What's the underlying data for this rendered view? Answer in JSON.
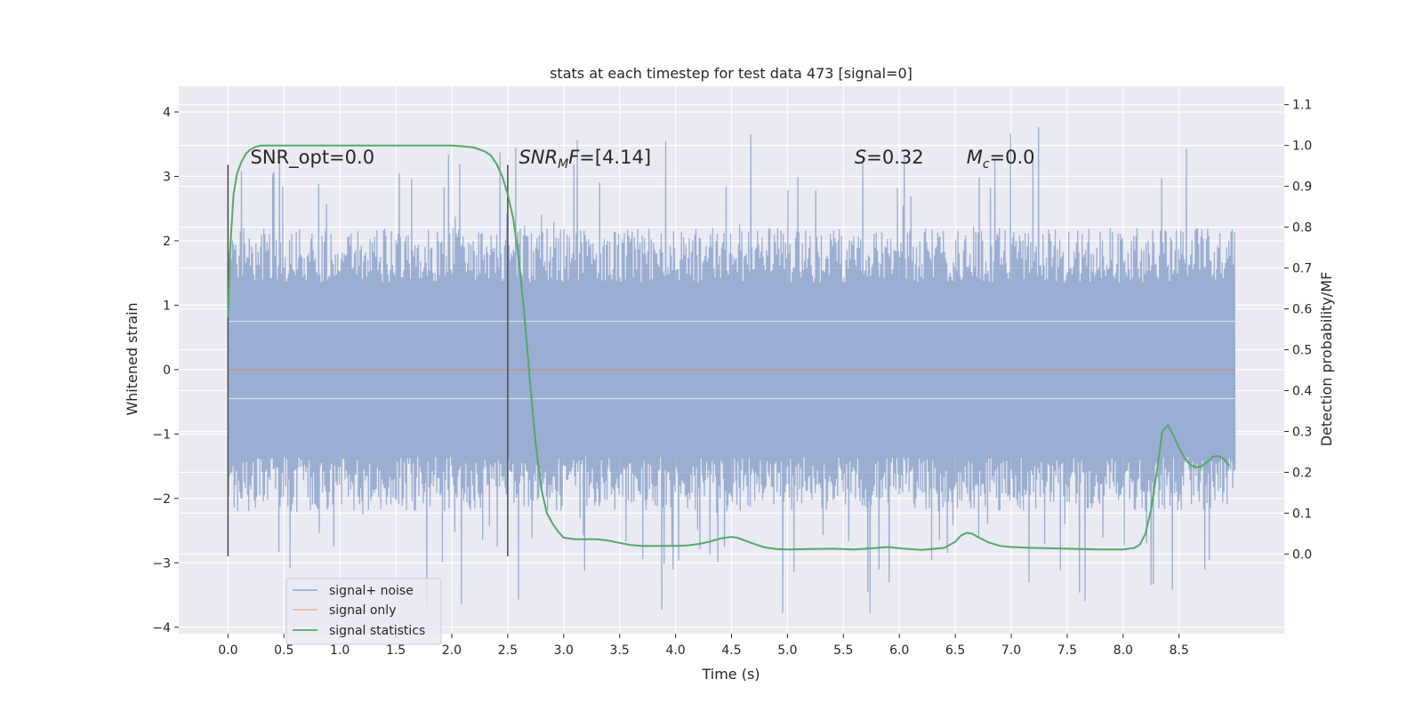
{
  "chart_data": {
    "type": "line",
    "title": "stats at each timestep for test data 473 [signal=0]",
    "xlabel": "Time (s)",
    "ylabel": "Whitened strain",
    "y2label": "Detection probability/MF",
    "xlim": [
      -0.44,
      9.44
    ],
    "ylim": [
      -4.1,
      4.4
    ],
    "y2lim": [
      -0.195,
      1.145
    ],
    "xticks": [
      0.0,
      0.5,
      1.0,
      1.5,
      2.0,
      2.5,
      3.0,
      3.5,
      4.0,
      4.5,
      5.0,
      5.5,
      6.0,
      6.5,
      7.0,
      7.5,
      8.0,
      8.5
    ],
    "xtick_labels": [
      "0.0",
      "0.5",
      "1.0",
      "1.5",
      "2.0",
      "2.5",
      "3.0",
      "3.5",
      "4.0",
      "4.5",
      "5.0",
      "5.5",
      "6.0",
      "6.5",
      "7.0",
      "7.5",
      "8.0",
      "8.5"
    ],
    "yticks": [
      -4,
      -3,
      -2,
      -1,
      0,
      1,
      2,
      3,
      4
    ],
    "ytick_labels": [
      "−4",
      "−3",
      "−2",
      "−1",
      "0",
      "1",
      "2",
      "3",
      "4"
    ],
    "y2ticks": [
      0.0,
      0.1,
      0.2,
      0.3,
      0.4,
      0.5,
      0.6,
      0.7,
      0.8,
      0.9,
      1.0,
      1.1
    ],
    "y2tick_labels": [
      "0.0",
      "0.1",
      "0.2",
      "0.3",
      "0.4",
      "0.5",
      "0.6",
      "0.7",
      "0.8",
      "0.9",
      "1.0",
      "1.1"
    ],
    "grid": true,
    "legend_position": "lower-left",
    "series": [
      {
        "name": "signal+ noise",
        "color": "#4c72b0",
        "axis": "left",
        "description": "noise-like whitened strain from 0.0 to 9.0 s, envelope roughly +-2.3 with spikes to +-4"
      },
      {
        "name": "signal only",
        "color": "#dd8452",
        "axis": "left",
        "x": [
          0.0,
          9.0
        ],
        "values": [
          0.0,
          0.0
        ]
      },
      {
        "name": "signal statistics",
        "color": "#55a868",
        "axis": "right",
        "x": [
          0.0,
          0.02,
          0.05,
          0.08,
          0.12,
          0.16,
          0.2,
          0.25,
          0.3,
          0.4,
          0.5,
          1.0,
          1.5,
          2.0,
          2.1,
          2.2,
          2.3,
          2.35,
          2.4,
          2.45,
          2.5,
          2.55,
          2.6,
          2.65,
          2.7,
          2.75,
          2.8,
          2.85,
          2.9,
          2.95,
          3.0,
          3.1,
          3.2,
          3.3,
          3.4,
          3.5,
          3.6,
          3.7,
          3.8,
          3.9,
          4.0,
          4.1,
          4.2,
          4.3,
          4.4,
          4.5,
          4.55,
          4.6,
          4.7,
          4.8,
          4.9,
          5.0,
          5.2,
          5.4,
          5.6,
          5.8,
          5.9,
          6.0,
          6.2,
          6.4,
          6.5,
          6.55,
          6.6,
          6.65,
          6.7,
          6.8,
          6.9,
          7.0,
          7.2,
          7.5,
          7.8,
          8.0,
          8.1,
          8.15,
          8.2,
          8.25,
          8.3,
          8.35,
          8.4,
          8.45,
          8.5,
          8.55,
          8.6,
          8.65,
          8.7,
          8.75,
          8.8,
          8.85,
          8.9,
          8.95
        ],
        "values": [
          0.58,
          0.75,
          0.88,
          0.93,
          0.96,
          0.98,
          0.99,
          0.997,
          1.0,
          1.0,
          1.0,
          1.0,
          1.0,
          1.0,
          0.998,
          0.995,
          0.985,
          0.975,
          0.955,
          0.925,
          0.88,
          0.82,
          0.72,
          0.58,
          0.42,
          0.27,
          0.16,
          0.1,
          0.075,
          0.055,
          0.04,
          0.036,
          0.036,
          0.036,
          0.033,
          0.027,
          0.022,
          0.02,
          0.02,
          0.02,
          0.02,
          0.021,
          0.024,
          0.03,
          0.038,
          0.042,
          0.04,
          0.035,
          0.025,
          0.016,
          0.012,
          0.011,
          0.012,
          0.013,
          0.011,
          0.015,
          0.017,
          0.014,
          0.01,
          0.015,
          0.03,
          0.045,
          0.052,
          0.05,
          0.042,
          0.028,
          0.02,
          0.017,
          0.015,
          0.013,
          0.011,
          0.011,
          0.015,
          0.023,
          0.05,
          0.11,
          0.2,
          0.3,
          0.315,
          0.29,
          0.26,
          0.235,
          0.218,
          0.212,
          0.215,
          0.225,
          0.238,
          0.24,
          0.232,
          0.215
        ]
      }
    ],
    "vertical_lines": [
      {
        "x": 0.0,
        "ymin": -2.9,
        "ymax": 3.18,
        "color": "#4d4d4d"
      },
      {
        "x": 2.5,
        "ymin": -2.9,
        "ymax": 3.18,
        "color": "#4d4d4d"
      }
    ],
    "annotations": [
      {
        "text": "SNR_opt=0.0",
        "x": 0.2,
        "y": 3.2
      },
      {
        "text": "SNR",
        "sub": "M",
        "suffix": "F=[4.14]",
        "x": 2.6,
        "y": 3.2
      },
      {
        "text": "S",
        "sub": "",
        "suffix": "=0.32",
        "x": 5.6,
        "y": 3.2
      },
      {
        "text": "M",
        "sub": "c",
        "suffix": "=0.0",
        "x": 6.6,
        "y": 3.2
      }
    ],
    "background_color": "#eaeaf2"
  }
}
